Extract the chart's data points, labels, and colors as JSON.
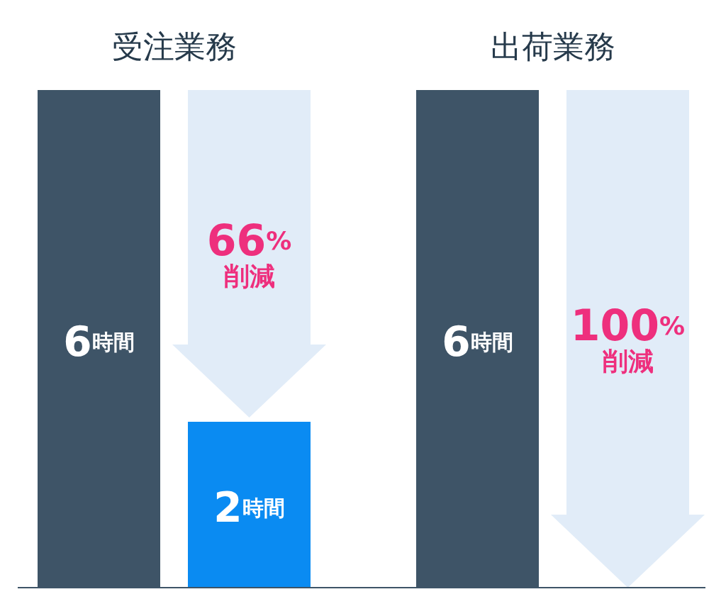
{
  "chart_data": {
    "type": "bar",
    "categories": [
      "受注業務",
      "出荷業務"
    ],
    "series": [
      {
        "color": "#3e5467",
        "values": [
          6,
          6
        ],
        "value_labels": [
          "6時間",
          "6時間"
        ]
      },
      {
        "color": "#0a8bf2",
        "values": [
          2,
          0
        ],
        "value_labels": [
          "2時間",
          null
        ]
      }
    ],
    "annotations": [
      "66%",
      "削減",
      "100%",
      "削減"
    ]
  }
}
